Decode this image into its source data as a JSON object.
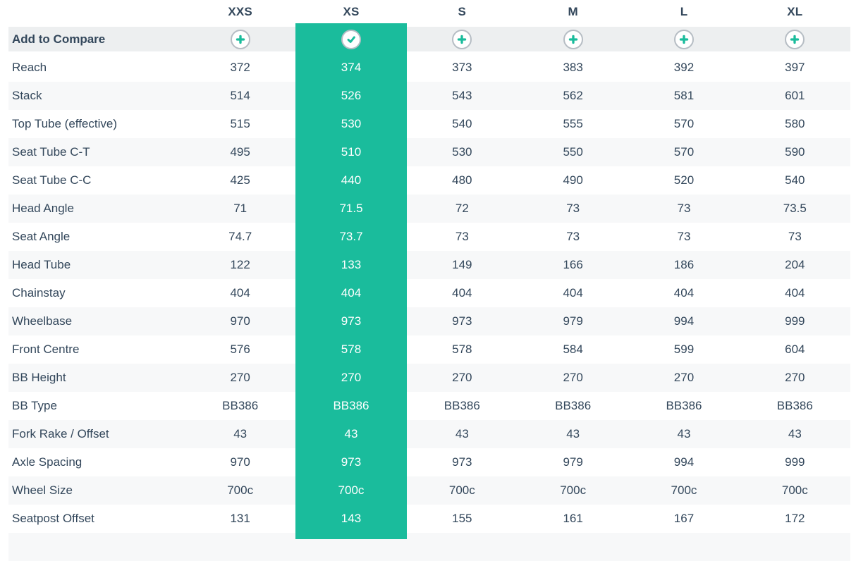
{
  "header": {
    "sizes": [
      "XXS",
      "XS",
      "S",
      "M",
      "L",
      "XL"
    ],
    "highlighted_size": "XS"
  },
  "compare": {
    "label": "Add to Compare"
  },
  "rows": [
    {
      "label": "Reach",
      "values": [
        "372",
        "374",
        "373",
        "383",
        "392",
        "397"
      ]
    },
    {
      "label": "Stack",
      "values": [
        "514",
        "526",
        "543",
        "562",
        "581",
        "601"
      ]
    },
    {
      "label": "Top Tube (effective)",
      "values": [
        "515",
        "530",
        "540",
        "555",
        "570",
        "580"
      ]
    },
    {
      "label": "Seat Tube C-T",
      "values": [
        "495",
        "510",
        "530",
        "550",
        "570",
        "590"
      ]
    },
    {
      "label": "Seat Tube C-C",
      "values": [
        "425",
        "440",
        "480",
        "490",
        "520",
        "540"
      ]
    },
    {
      "label": "Head Angle",
      "values": [
        "71",
        "71.5",
        "72",
        "73",
        "73",
        "73.5"
      ]
    },
    {
      "label": "Seat Angle",
      "values": [
        "74.7",
        "73.7",
        "73",
        "73",
        "73",
        "73"
      ]
    },
    {
      "label": "Head Tube",
      "values": [
        "122",
        "133",
        "149",
        "166",
        "186",
        "204"
      ]
    },
    {
      "label": "Chainstay",
      "values": [
        "404",
        "404",
        "404",
        "404",
        "404",
        "404"
      ]
    },
    {
      "label": "Wheelbase",
      "values": [
        "970",
        "973",
        "973",
        "979",
        "994",
        "999"
      ]
    },
    {
      "label": "Front Centre",
      "values": [
        "576",
        "578",
        "578",
        "584",
        "599",
        "604"
      ]
    },
    {
      "label": "BB Height",
      "values": [
        "270",
        "270",
        "270",
        "270",
        "270",
        "270"
      ]
    },
    {
      "label": "BB Type",
      "values": [
        "BB386",
        "BB386",
        "BB386",
        "BB386",
        "BB386",
        "BB386"
      ]
    },
    {
      "label": "Fork Rake / Offset",
      "values": [
        "43",
        "43",
        "43",
        "43",
        "43",
        "43"
      ]
    },
    {
      "label": "Axle Spacing",
      "values": [
        "970",
        "973",
        "973",
        "979",
        "994",
        "999"
      ]
    },
    {
      "label": "Wheel Size",
      "values": [
        "700c",
        "700c",
        "700c",
        "700c",
        "700c",
        "700c"
      ]
    },
    {
      "label": "Seatpost Offset",
      "values": [
        "131",
        "143",
        "155",
        "161",
        "167",
        "172"
      ]
    }
  ],
  "icons": {
    "add": "plus-circle-icon",
    "selected": "check-circle-icon"
  },
  "colors": {
    "accent": "#1abc9c",
    "text": "#33475b",
    "compare_row_bg": "#edeff0",
    "stripe_bg": "#f7f8f9",
    "icon_ring": "#b6bdc4",
    "highlight_text": "#ffffff"
  }
}
